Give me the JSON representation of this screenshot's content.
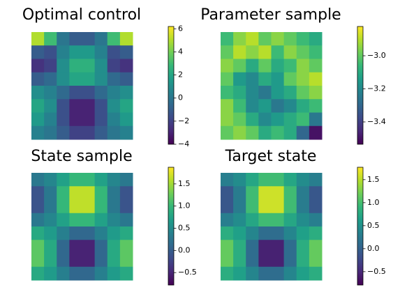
{
  "chart_data": [
    {
      "type": "heatmap",
      "title": "Optimal control",
      "colormap": "viridis",
      "values": [
        [
          5,
          3,
          0,
          -1,
          -1,
          0,
          3,
          5
        ],
        [
          -1,
          -1.5,
          0.5,
          1.5,
          1.5,
          0.5,
          -1.5,
          -1
        ],
        [
          -2.5,
          -2,
          1,
          2.5,
          2.5,
          1,
          -2,
          -2.5
        ],
        [
          -1,
          -0.5,
          1,
          2,
          2,
          1,
          -0.5,
          -1
        ],
        [
          1,
          0.5,
          -0.5,
          -1.5,
          -1.5,
          -0.5,
          0.5,
          1
        ],
        [
          2,
          1,
          -1.5,
          -3,
          -3,
          -1.5,
          1,
          2
        ],
        [
          1.5,
          0.5,
          -1.5,
          -3,
          -3,
          -1.5,
          0.5,
          1.5
        ],
        [
          0.5,
          0,
          -1,
          -2,
          -2,
          -1,
          0,
          0.5
        ]
      ],
      "clim": [
        -4,
        6.2
      ],
      "cticks": [
        {
          "value": -4,
          "label": "−4"
        },
        {
          "value": -2,
          "label": "−2"
        },
        0,
        2,
        4,
        6
      ]
    },
    {
      "type": "heatmap",
      "title": "Parameter sample",
      "colormap": "viridis",
      "values": [
        [
          -3.05,
          -2.95,
          -2.9,
          -3.0,
          -2.95,
          -3.0,
          -3.05,
          -3.1
        ],
        [
          -3.0,
          -2.9,
          -2.95,
          -2.9,
          -3.05,
          -2.95,
          -3.0,
          -3.05
        ],
        [
          -2.95,
          -3.0,
          -3.1,
          -3.0,
          -3.1,
          -3.05,
          -2.95,
          -3.0
        ],
        [
          -3.0,
          -3.15,
          -3.2,
          -3.1,
          -3.15,
          -3.0,
          -2.95,
          -2.9
        ],
        [
          -3.05,
          -3.1,
          -3.2,
          -3.25,
          -3.15,
          -3.1,
          -3.0,
          -2.95
        ],
        [
          -2.95,
          -3.05,
          -3.2,
          -3.15,
          -3.25,
          -3.2,
          -3.1,
          -3.05
        ],
        [
          -2.95,
          -3.0,
          -3.1,
          -3.2,
          -3.15,
          -3.1,
          -3.05,
          -3.25
        ],
        [
          -3.0,
          -2.95,
          -3.0,
          -3.1,
          -3.05,
          -3.1,
          -3.3,
          -3.5
        ]
      ],
      "clim": [
        -3.535,
        -2.823
      ],
      "cticks": [
        {
          "value": -3.4,
          "label": "−3.4"
        },
        {
          "value": -3.2,
          "label": "−3.2"
        },
        {
          "value": -3.0,
          "label": "−3.0"
        }
      ]
    },
    {
      "type": "heatmap",
      "title": "State sample",
      "colormap": "viridis",
      "values": [
        [
          0.29,
          0.44,
          0.73,
          0.99,
          0.99,
          0.73,
          0.44,
          0.29
        ],
        [
          -0.09,
          0.29,
          0.99,
          1.62,
          1.62,
          0.99,
          0.29,
          -0.09
        ],
        [
          -0.09,
          0.29,
          0.99,
          1.62,
          1.62,
          0.99,
          0.29,
          -0.09
        ],
        [
          0.29,
          0.44,
          0.73,
          0.99,
          0.99,
          0.73,
          0.44,
          0.29
        ],
        [
          0.82,
          0.66,
          0.37,
          0.11,
          0.11,
          0.37,
          0.66,
          0.82
        ],
        [
          1.19,
          0.82,
          0.11,
          -0.52,
          -0.52,
          0.11,
          0.82,
          1.19
        ],
        [
          1.19,
          0.82,
          0.11,
          -0.52,
          -0.52,
          0.11,
          0.82,
          1.19
        ],
        [
          0.82,
          0.66,
          0.37,
          0.11,
          0.11,
          0.37,
          0.66,
          0.82
        ]
      ],
      "clim": [
        -0.78,
        1.875
      ],
      "cticks": [
        {
          "value": -0.5,
          "label": "−0.5"
        },
        {
          "value": 0.0,
          "label": "0.0"
        },
        0.5,
        {
          "value": 1.0,
          "label": "1.0"
        },
        1.5
      ]
    },
    {
      "type": "heatmap",
      "title": "Target state",
      "colormap": "viridis",
      "values": [
        [
          0.3,
          0.45,
          0.72,
          0.97,
          0.97,
          0.72,
          0.45,
          0.3
        ],
        [
          -0.1,
          0.28,
          0.97,
          1.58,
          1.58,
          0.97,
          0.28,
          -0.1
        ],
        [
          -0.1,
          0.28,
          0.97,
          1.58,
          1.58,
          0.97,
          0.28,
          -0.1
        ],
        [
          0.3,
          0.45,
          0.72,
          0.97,
          0.97,
          0.72,
          0.45,
          0.3
        ],
        [
          0.8,
          0.65,
          0.38,
          0.12,
          0.12,
          0.38,
          0.65,
          0.8
        ],
        [
          1.15,
          0.8,
          0.12,
          -0.55,
          -0.55,
          0.12,
          0.8,
          1.15
        ],
        [
          1.15,
          0.8,
          0.12,
          -0.55,
          -0.55,
          0.12,
          0.8,
          1.15
        ],
        [
          0.8,
          0.65,
          0.38,
          0.12,
          0.12,
          0.38,
          0.65,
          0.8
        ]
      ],
      "clim": [
        -0.79,
        1.77
      ],
      "cticks": [
        {
          "value": -0.5,
          "label": "−0.5"
        },
        {
          "value": 0.0,
          "label": "0.0"
        },
        0.5,
        {
          "value": 1.0,
          "label": "1.0"
        },
        1.5
      ]
    }
  ]
}
